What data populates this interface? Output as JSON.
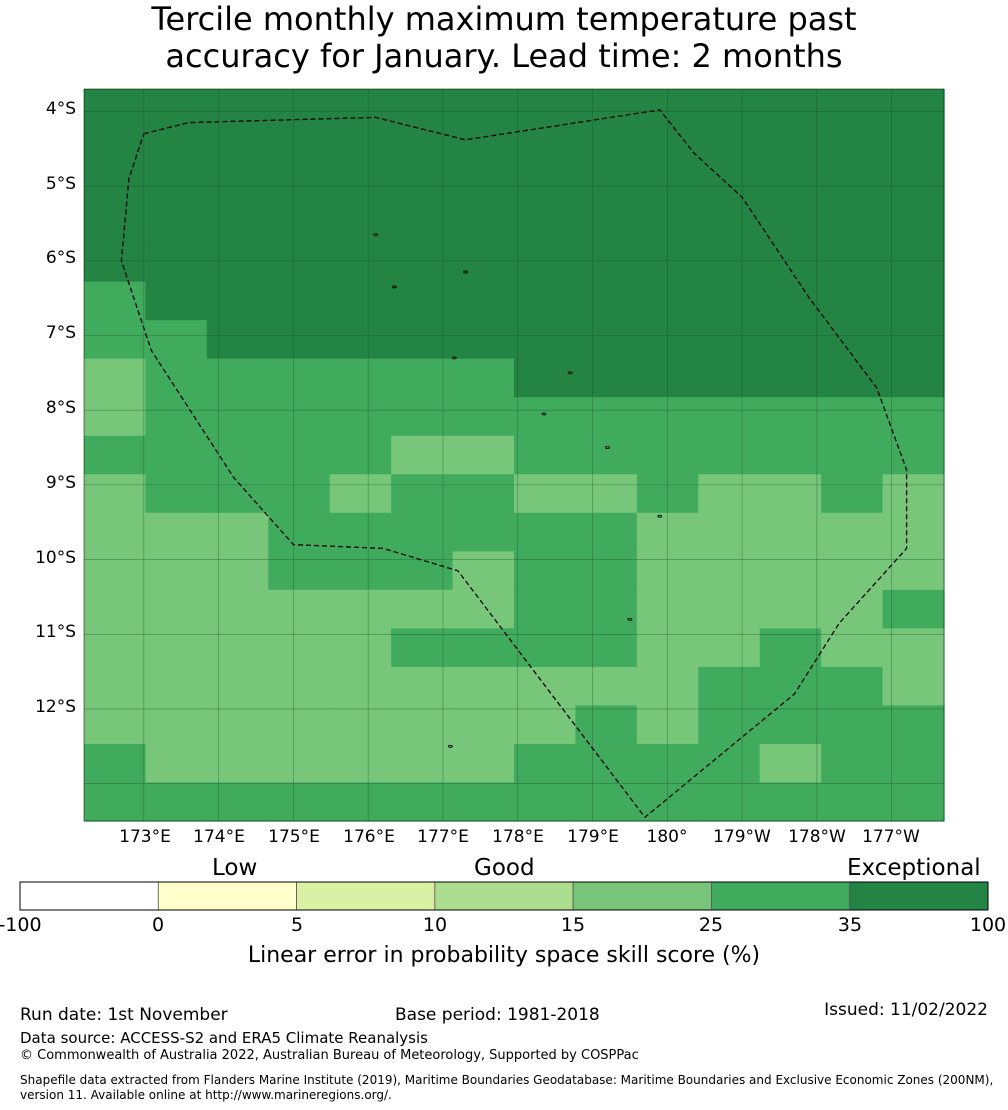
{
  "title": {
    "line1": "Tercile monthly maximum temperature past",
    "line2": "accuracy for January. Lead time: 2 months"
  },
  "map": {
    "lat_labels": [
      "4°S",
      "5°S",
      "6°S",
      "7°S",
      "8°S",
      "9°S",
      "10°S",
      "11°S",
      "12°S"
    ],
    "lon_labels": [
      "173°E",
      "174°E",
      "175°E",
      "176°E",
      "177°E",
      "178°E",
      "179°E",
      "180°",
      "179°W",
      "178°W",
      "177°W"
    ],
    "lat_range": [
      -13.5,
      -3.7
    ],
    "lon_range": [
      172.2,
      183.7
    ],
    "cell_size_deg": [
      0.833,
      0.556
    ],
    "skill_grid_legend_level": [
      [
        6,
        6,
        6,
        6,
        6,
        6,
        6,
        6,
        6,
        6,
        6,
        6,
        6,
        6
      ],
      [
        6,
        6,
        6,
        6,
        6,
        6,
        6,
        6,
        6,
        6,
        6,
        6,
        6,
        6
      ],
      [
        6,
        6,
        6,
        6,
        6,
        6,
        6,
        6,
        6,
        6,
        6,
        6,
        6,
        6
      ],
      [
        6,
        6,
        6,
        6,
        6,
        6,
        6,
        6,
        6,
        6,
        6,
        6,
        6,
        6
      ],
      [
        6,
        6,
        6,
        6,
        6,
        6,
        6,
        6,
        6,
        6,
        6,
        6,
        6,
        6
      ],
      [
        5,
        6,
        6,
        6,
        6,
        6,
        6,
        6,
        6,
        6,
        6,
        6,
        6,
        6
      ],
      [
        5,
        5,
        6,
        6,
        6,
        6,
        6,
        6,
        6,
        6,
        6,
        6,
        6,
        6
      ],
      [
        4,
        5,
        5,
        5,
        5,
        5,
        5,
        6,
        6,
        6,
        6,
        6,
        6,
        6
      ],
      [
        4,
        5,
        5,
        5,
        5,
        5,
        5,
        5,
        5,
        5,
        5,
        5,
        5,
        5
      ],
      [
        5,
        5,
        5,
        5,
        5,
        4,
        4,
        5,
        5,
        5,
        5,
        5,
        5,
        5
      ],
      [
        4,
        5,
        5,
        5,
        4,
        5,
        5,
        4,
        4,
        5,
        4,
        4,
        5,
        4
      ],
      [
        4,
        4,
        4,
        5,
        5,
        5,
        5,
        5,
        5,
        4,
        4,
        4,
        4,
        4
      ],
      [
        4,
        4,
        4,
        5,
        5,
        5,
        4,
        5,
        5,
        4,
        4,
        4,
        4,
        4
      ],
      [
        4,
        4,
        4,
        4,
        4,
        4,
        4,
        5,
        5,
        4,
        4,
        4,
        4,
        5
      ],
      [
        4,
        4,
        4,
        4,
        4,
        5,
        5,
        5,
        5,
        4,
        4,
        5,
        4,
        4
      ],
      [
        4,
        4,
        4,
        4,
        4,
        4,
        4,
        4,
        4,
        4,
        5,
        5,
        5,
        4
      ],
      [
        4,
        4,
        4,
        4,
        4,
        4,
        4,
        4,
        5,
        4,
        5,
        5,
        5,
        5
      ],
      [
        5,
        4,
        4,
        4,
        4,
        4,
        4,
        5,
        5,
        5,
        5,
        4,
        5,
        5
      ],
      [
        5,
        5,
        5,
        5,
        5,
        5,
        5,
        5,
        5,
        5,
        5,
        5,
        5,
        5
      ]
    ],
    "boundary_lonlat": [
      [
        173.0,
        -4.3
      ],
      [
        173.6,
        -4.15
      ],
      [
        176.1,
        -4.08
      ],
      [
        177.3,
        -4.38
      ],
      [
        179.9,
        -3.98
      ],
      [
        180.35,
        -4.55
      ],
      [
        181.0,
        -5.15
      ],
      [
        181.9,
        -6.5
      ],
      [
        182.8,
        -7.7
      ],
      [
        183.2,
        -8.8
      ],
      [
        183.2,
        -9.85
      ],
      [
        182.3,
        -10.85
      ],
      [
        181.7,
        -11.8
      ],
      [
        179.7,
        -13.45
      ],
      [
        177.2,
        -10.15
      ],
      [
        176.2,
        -9.85
      ],
      [
        175.0,
        -9.8
      ],
      [
        174.2,
        -8.9
      ],
      [
        173.1,
        -7.2
      ],
      [
        172.7,
        -6.0
      ],
      [
        172.8,
        -4.9
      ],
      [
        173.0,
        -4.3
      ]
    ],
    "islands_lonlat": [
      [
        176.1,
        -5.65
      ],
      [
        177.3,
        -6.15
      ],
      [
        176.35,
        -6.35
      ],
      [
        177.15,
        -7.3
      ],
      [
        178.7,
        -7.5
      ],
      [
        178.35,
        -8.05
      ],
      [
        179.2,
        -8.5
      ],
      [
        179.9,
        -9.42
      ],
      [
        179.5,
        -10.8
      ],
      [
        177.1,
        -12.5
      ]
    ]
  },
  "legend": {
    "category_labels": [
      "Low",
      "Good",
      "Exceptional"
    ],
    "ticks": [
      "-100",
      "0",
      "5",
      "10",
      "15",
      "25",
      "35",
      "100"
    ],
    "colors": [
      "#ffffff",
      "#ffffcc",
      "#d9f0a3",
      "#addd8e",
      "#78c679",
      "#41ab5d",
      "#238443"
    ],
    "title": "Linear error in probability space skill score (%)"
  },
  "footer": {
    "run_date": "Run date: 1st November",
    "base_period": "Base period: 1981-2018",
    "issued": "Issued: 11/02/2022",
    "data_source": "Data source: ACCESS-S2 and ERA5 Climate Reanalysis",
    "copyright": "© Commonwealth of Australia 2022, Australian Bureau of Meteorology, Supported by COSPPac",
    "shapefile_note": "Shapefile data extracted from Flanders Marine Institute (2019), Maritime Boundaries Geodatabase: Maritime Boundaries and Exclusive Economic Zones (200NM), version 11. Available online at http://www.marineregions.org/."
  }
}
